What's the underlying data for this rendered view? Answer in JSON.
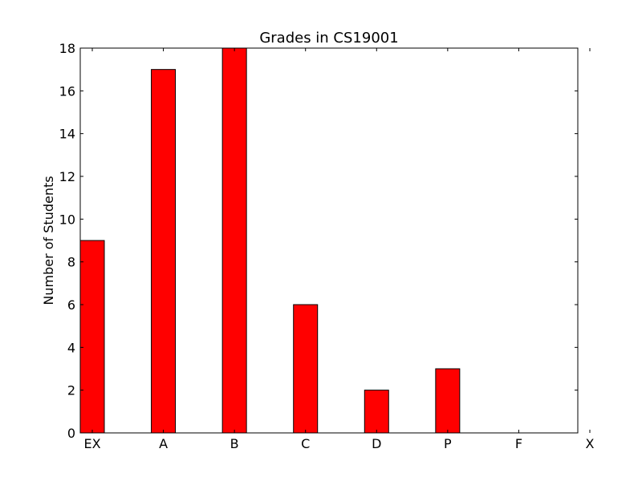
{
  "chart_data": {
    "type": "bar",
    "title": "Grades in CS19001",
    "xlabel": "",
    "ylabel": "Number of Students",
    "categories": [
      "EX",
      "A",
      "B",
      "C",
      "D",
      "P",
      "F",
      "X"
    ],
    "values": [
      9,
      17,
      18,
      6,
      2,
      3,
      0,
      0
    ],
    "ylim": [
      0,
      18
    ],
    "yticks": [
      0,
      2,
      4,
      6,
      8,
      10,
      12,
      14,
      16,
      18
    ],
    "grid": false,
    "legend": "none",
    "colors": {
      "bar": "#ff0000",
      "edge": "#000000",
      "axes": "#000000"
    }
  }
}
